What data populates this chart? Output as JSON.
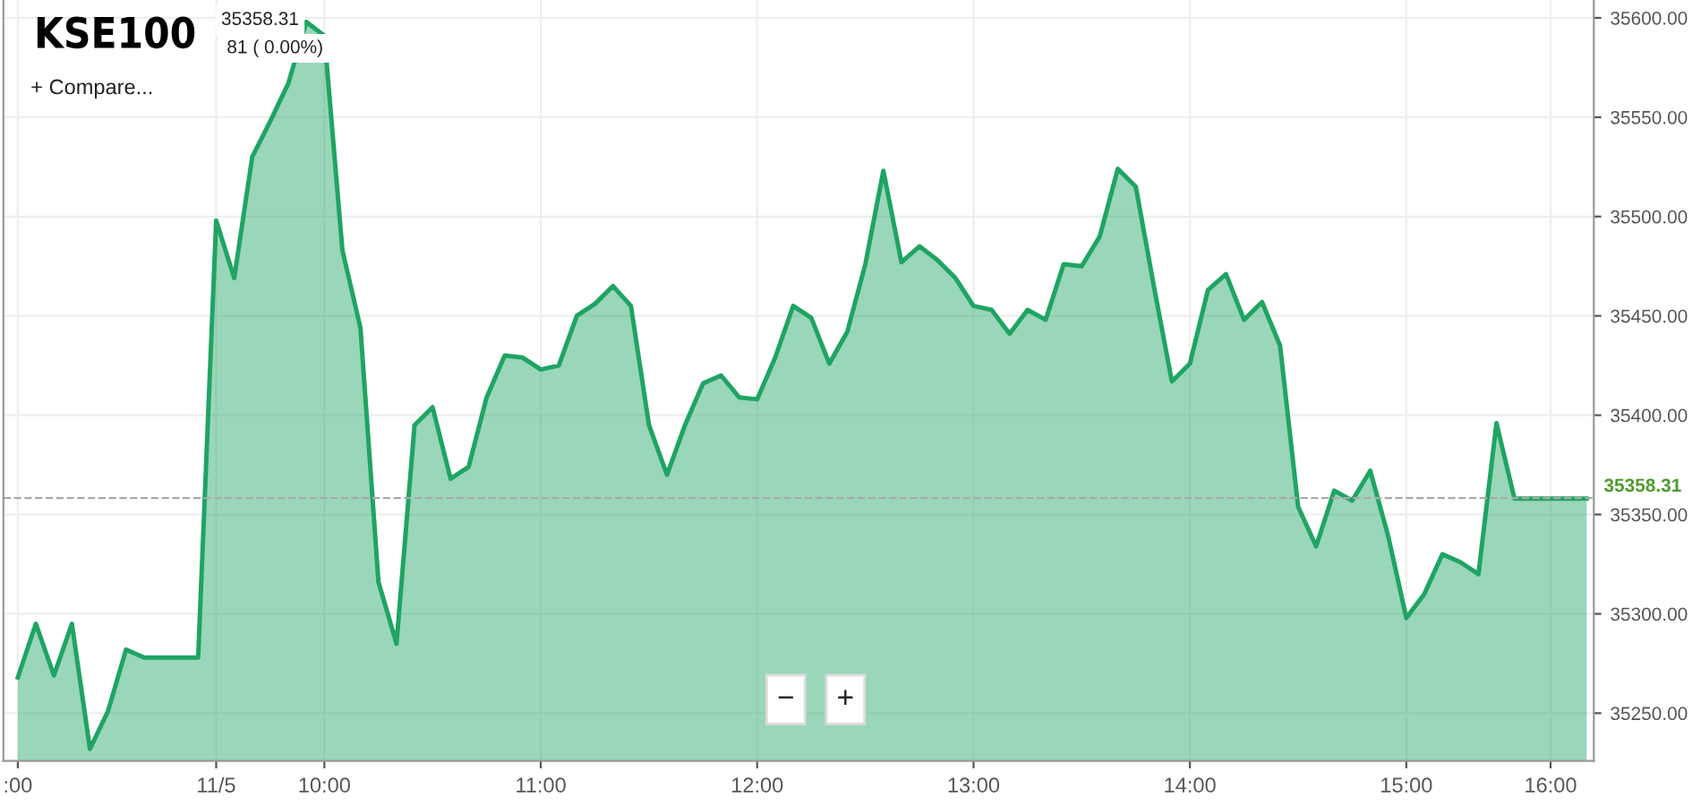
{
  "chart_data": {
    "type": "area",
    "title": "KSE100",
    "categories": [
      ":00",
      null,
      null,
      null,
      null,
      null,
      null,
      null,
      null,
      null,
      null,
      "11/5",
      null,
      null,
      null,
      null,
      null,
      "10:00",
      null,
      null,
      null,
      null,
      null,
      null,
      null,
      null,
      null,
      null,
      null,
      "11:00",
      null,
      null,
      null,
      null,
      null,
      null,
      null,
      null,
      null,
      null,
      null,
      "12:00",
      null,
      null,
      null,
      null,
      null,
      null,
      null,
      null,
      null,
      null,
      null,
      "13:00",
      null,
      null,
      null,
      null,
      null,
      null,
      null,
      null,
      null,
      null,
      null,
      "14:00",
      null,
      null,
      null,
      null,
      null,
      null,
      null,
      null,
      null,
      null,
      null,
      "15:00",
      null,
      null,
      null,
      null,
      null,
      null,
      null,
      "16:00",
      null,
      null
    ],
    "series": [
      {
        "color": "#1fa463",
        "values": [
          35268,
          35295,
          35269,
          35295,
          35232,
          35251,
          35282,
          35278,
          35278,
          35278,
          35278,
          35498,
          35469,
          35530,
          35548,
          35567,
          35598,
          35591,
          35483,
          35444,
          35316,
          35285,
          35395,
          35404,
          35368,
          35374,
          35409,
          35430,
          35429,
          35423,
          35425,
          35450,
          35456,
          35465,
          35455,
          35395,
          35370,
          35395,
          35416,
          35420,
          35409,
          35408,
          35429,
          35455,
          35449,
          35426,
          35442,
          35476,
          35523,
          35477,
          35485,
          35478,
          35469,
          35455,
          35453,
          35441,
          35453,
          35448,
          35476,
          35475,
          35490,
          35524,
          35515,
          35465,
          35417,
          35426,
          35463,
          35471,
          35448,
          35457,
          35435,
          35354,
          35334,
          35362,
          35357,
          35372,
          35339,
          35298,
          35310,
          35330,
          35326,
          35320,
          35396,
          35358,
          35358,
          35358,
          35358,
          35358
        ]
      }
    ],
    "ylim": [
      35226,
      35609
    ],
    "yticks": [
      {
        "value": 35250,
        "label": "35250.00"
      },
      {
        "value": 35300,
        "label": "35300.00"
      },
      {
        "value": 35350,
        "label": "35350.00"
      },
      {
        "value": 35400,
        "label": "35400.00"
      },
      {
        "value": 35450,
        "label": "35450.00"
      },
      {
        "value": 35500,
        "label": "35500.00"
      },
      {
        "value": 35550,
        "label": "35550.00"
      },
      {
        "value": 35600,
        "label": "35600.00"
      }
    ],
    "ref_lines": [
      {
        "axis": "y",
        "value": 35358.31,
        "label": "35358.31",
        "color": "#aaaaaa",
        "line_style": "dashed"
      }
    ],
    "annotations": [
      "35358.31",
      "81 ( 0.00%)",
      "+ Compare...",
      "−",
      "+"
    ],
    "grid": true
  }
}
